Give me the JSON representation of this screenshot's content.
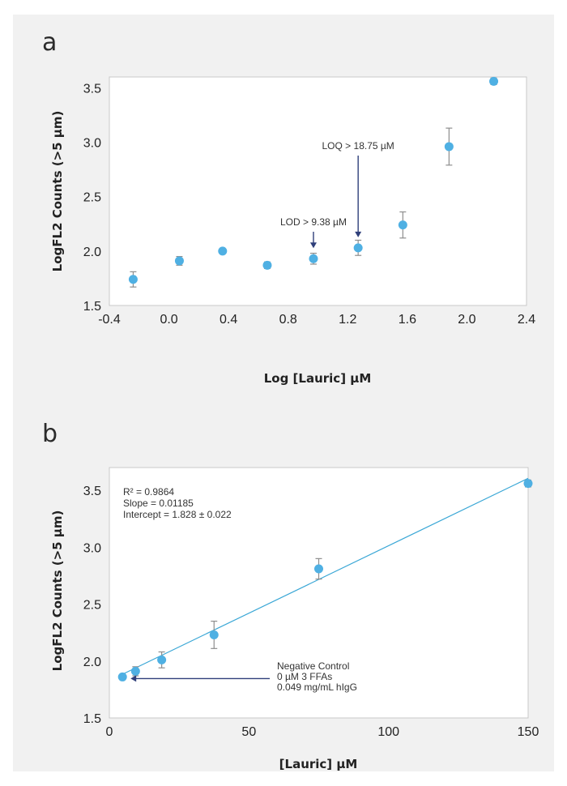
{
  "chart_data": [
    {
      "panel_label": "a",
      "type": "scatter",
      "xlabel": "Log [Lauric] µM",
      "ylabel": "LogFL2 Counts (>5 µm)",
      "xlim": [
        -0.4,
        2.4
      ],
      "ylim": [
        1.5,
        3.6
      ],
      "x_ticks": [
        -0.4,
        0.0,
        0.4,
        0.8,
        1.2,
        1.6,
        2.0,
        2.4
      ],
      "x_tick_labels": [
        "-0.4",
        "0.0",
        "0.4",
        "0.8",
        "1.2",
        "1.6",
        "2.0",
        "2.4"
      ],
      "y_ticks": [
        1.5,
        2.0,
        2.5,
        3.0,
        3.5
      ],
      "y_tick_labels": [
        "1.5",
        "2.0",
        "2.5",
        "3.0",
        "3.5"
      ],
      "grid": false,
      "points": [
        {
          "x": -0.24,
          "y": 1.74,
          "err": 0.07
        },
        {
          "x": 0.07,
          "y": 1.91,
          "err": 0.04
        },
        {
          "x": 0.36,
          "y": 2.0,
          "err": 0.02
        },
        {
          "x": 0.66,
          "y": 1.87,
          "err": 0.03
        },
        {
          "x": 0.97,
          "y": 1.93,
          "err": 0.05
        },
        {
          "x": 1.27,
          "y": 2.03,
          "err": 0.07
        },
        {
          "x": 1.57,
          "y": 2.24,
          "err": 0.12
        },
        {
          "x": 1.88,
          "y": 2.96,
          "err": 0.17
        },
        {
          "x": 2.18,
          "y": 3.56,
          "err": 0.03
        }
      ],
      "annotations": [
        {
          "text": "LOD > 9.38 µM",
          "target_x": 0.97,
          "target_y": 1.93
        },
        {
          "text": "LOQ > 18.75 µM",
          "target_x": 1.27,
          "target_y": 2.03
        }
      ]
    },
    {
      "panel_label": "b",
      "type": "scatter",
      "xlabel": "[Lauric] µM",
      "ylabel": "LogFL2 Counts (>5 µm)",
      "xlim": [
        0,
        150
      ],
      "ylim": [
        1.5,
        3.7
      ],
      "x_ticks": [
        0,
        50,
        100,
        150
      ],
      "x_tick_labels": [
        "0",
        "50",
        "100",
        "150"
      ],
      "y_ticks": [
        1.5,
        2.0,
        2.5,
        3.0,
        3.5
      ],
      "y_tick_labels": [
        "1.5",
        "2.0",
        "2.5",
        "3.0",
        "3.5"
      ],
      "grid": false,
      "points": [
        {
          "x": 4.7,
          "y": 1.86,
          "err": 0.02
        },
        {
          "x": 9.38,
          "y": 1.91,
          "err": 0.04
        },
        {
          "x": 18.75,
          "y": 2.01,
          "err": 0.07
        },
        {
          "x": 37.5,
          "y": 2.23,
          "err": 0.12
        },
        {
          "x": 75,
          "y": 2.81,
          "err": 0.09
        },
        {
          "x": 150,
          "y": 3.56,
          "err": 0.03
        }
      ],
      "fit_line": {
        "slope": 0.01185,
        "intercept": 1.828,
        "x_range": [
          4.7,
          150
        ]
      },
      "stats_lines": [
        "R² = 0.9864",
        "Slope = 0.01185",
        "Intercept = 1.828 ± 0.022"
      ],
      "annotations": [
        {
          "lines": [
            "Negative Control",
            "0 µM 3 FFAs",
            "0.049 mg/mL hIgG"
          ],
          "target_x": 4.7,
          "target_y": 1.86
        }
      ]
    }
  ]
}
